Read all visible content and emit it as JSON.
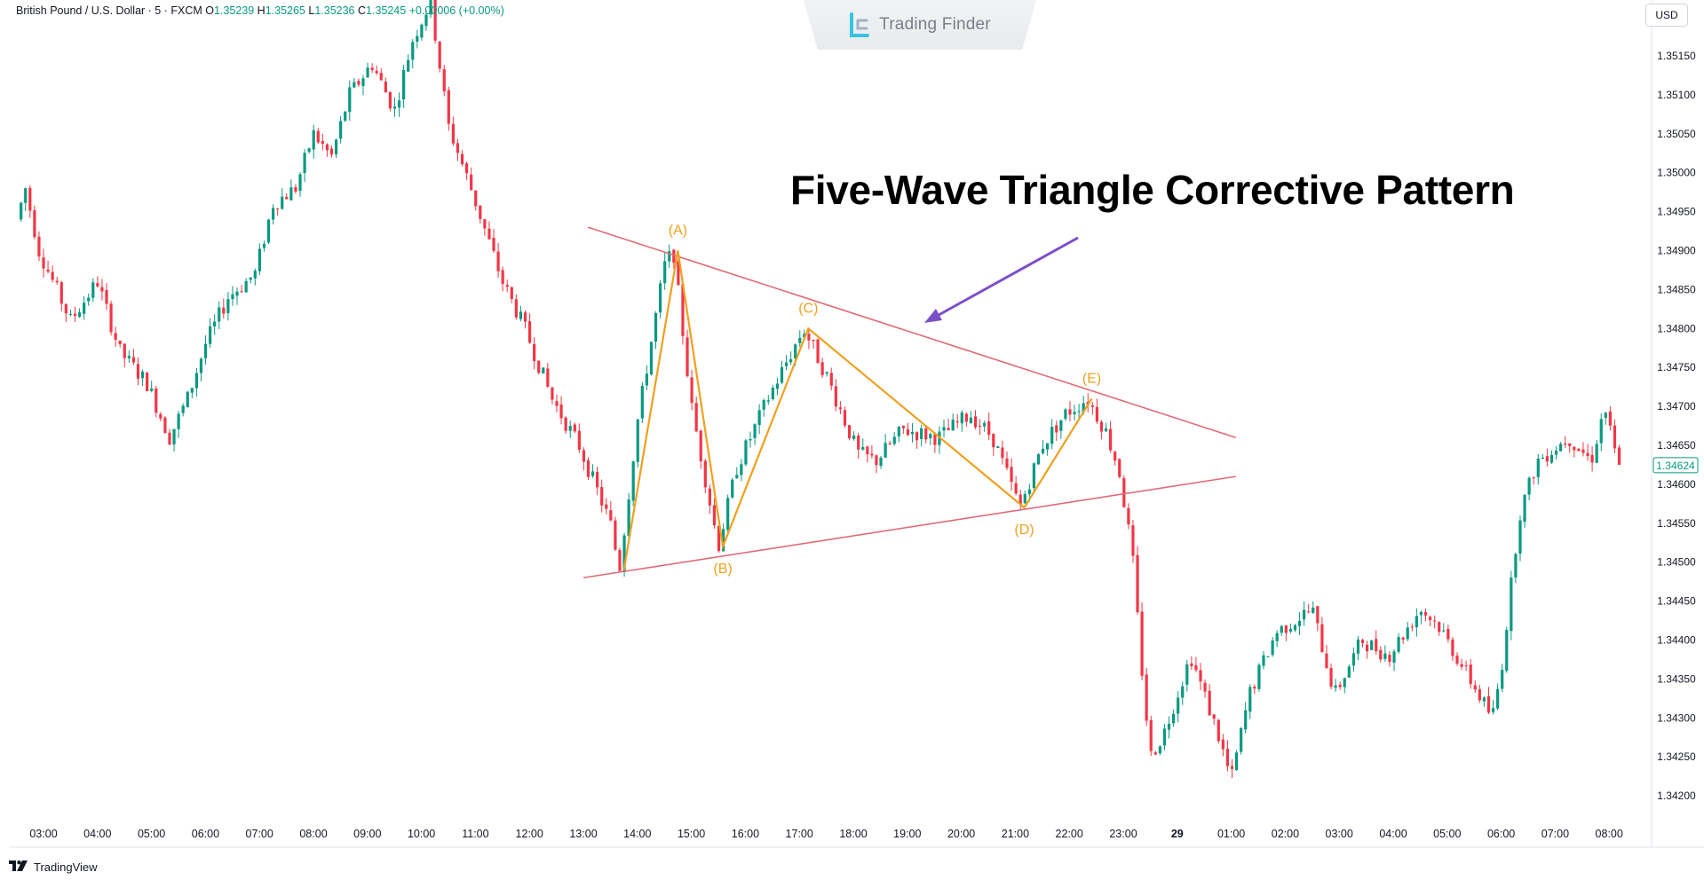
{
  "legend": {
    "symbol": "British Pound / U.S. Dollar · 5 · FXCM",
    "o_label": "O",
    "o_value": "1.35239",
    "h_label": "H",
    "h_value": "1.35265",
    "l_label": "L",
    "l_value": "1.35236",
    "c_label": "C",
    "c_value": "1.35245",
    "change": "+0.00006 (+0.00%)"
  },
  "watermark": {
    "text": "Trading Finder"
  },
  "annotation": {
    "title": "Five-Wave Triangle Corrective Pattern"
  },
  "currency_button": "USD",
  "footer": {
    "brand": "TradingView"
  },
  "colors": {
    "up": "#089981",
    "down": "#f23645",
    "wave": "#f0a01e",
    "trendline": "#e06b78",
    "arrow": "#7b4fc9",
    "price_badge": "#089981"
  },
  "chart_data": {
    "type": "candlestick",
    "timeframe": "5",
    "x_tick_labels": [
      "03:00",
      "04:00",
      "05:00",
      "06:00",
      "07:00",
      "08:00",
      "09:00",
      "10:00",
      "11:00",
      "12:00",
      "13:00",
      "14:00",
      "15:00",
      "16:00",
      "17:00",
      "18:00",
      "19:00",
      "20:00",
      "21:00",
      "22:00",
      "23:00",
      "29",
      "01:00",
      "02:00",
      "03:00",
      "04:00",
      "05:00",
      "06:00",
      "07:00",
      "08:00"
    ],
    "y_tick_labels": [
      "1.35150",
      "1.35100",
      "1.35050",
      "1.35000",
      "1.34950",
      "1.34900",
      "1.34850",
      "1.34800",
      "1.34750",
      "1.34700",
      "1.34650",
      "1.34600",
      "1.34550",
      "1.34500",
      "1.34450",
      "1.34400",
      "1.34350",
      "1.34300",
      "1.34250",
      "1.34200"
    ],
    "ylim": [
      1.3416,
      1.3526
    ],
    "current_price": "1.34624",
    "price_path": [
      [
        "02:35",
        1.3494
      ],
      [
        "02:45",
        1.3498
      ],
      [
        "03:00",
        1.349
      ],
      [
        "03:35",
        1.3481
      ],
      [
        "04:05",
        1.3486
      ],
      [
        "04:30",
        1.3477
      ],
      [
        "05:00",
        1.3473
      ],
      [
        "05:25",
        1.3466
      ],
      [
        "05:45",
        1.3471
      ],
      [
        "06:05",
        1.3478
      ],
      [
        "06:30",
        1.3484
      ],
      [
        "07:00",
        1.3487
      ],
      [
        "07:20",
        1.3496
      ],
      [
        "07:45",
        1.3498
      ],
      [
        "08:05",
        1.3505
      ],
      [
        "08:25",
        1.3502
      ],
      [
        "08:45",
        1.351
      ],
      [
        "09:10",
        1.3514
      ],
      [
        "09:35",
        1.3508
      ],
      [
        "09:55",
        1.3517
      ],
      [
        "10:15",
        1.3522
      ],
      [
        "10:35",
        1.3506
      ],
      [
        "11:00",
        1.3498
      ],
      [
        "11:35",
        1.3486
      ],
      [
        "12:00",
        1.348
      ],
      [
        "12:30",
        1.3471
      ],
      [
        "13:00",
        1.3465
      ],
      [
        "13:35",
        1.3455
      ],
      [
        "13:45",
        1.3449
      ],
      [
        "14:05",
        1.3468
      ],
      [
        "14:35",
        1.3488
      ],
      [
        "14:45",
        1.349
      ],
      [
        "15:05",
        1.347
      ],
      [
        "15:35",
        1.3452
      ],
      [
        "15:55",
        1.3462
      ],
      [
        "16:30",
        1.3471
      ],
      [
        "17:10",
        1.348
      ],
      [
        "17:35",
        1.3474
      ],
      [
        "18:10",
        1.3464
      ],
      [
        "18:30",
        1.3463
      ],
      [
        "19:00",
        1.3467
      ],
      [
        "19:40",
        1.3466
      ],
      [
        "20:15",
        1.3469
      ],
      [
        "20:40",
        1.3466
      ],
      [
        "21:10",
        1.3457
      ],
      [
        "21:35",
        1.3465
      ],
      [
        "22:00",
        1.3469
      ],
      [
        "22:25",
        1.3471
      ],
      [
        "22:45",
        1.3467
      ],
      [
        "23:00",
        1.3462
      ],
      [
        "23:15",
        1.3451
      ],
      [
        "23:25",
        1.3437
      ],
      [
        "23:35",
        1.3425
      ],
      [
        "23:50",
        1.3428
      ],
      [
        "00:20",
        1.3438
      ],
      [
        "00:50",
        1.3428
      ],
      [
        "01:05",
        1.3422
      ],
      [
        "01:25",
        1.3433
      ],
      [
        "01:55",
        1.3441
      ],
      [
        "02:35",
        1.3444
      ],
      [
        "03:00",
        1.3433
      ],
      [
        "03:30",
        1.344
      ],
      [
        "04:00",
        1.3438
      ],
      [
        "04:35",
        1.3444
      ],
      [
        "04:55",
        1.3442
      ],
      [
        "05:25",
        1.3436
      ],
      [
        "05:55",
        1.343
      ],
      [
        "06:05",
        1.3436
      ],
      [
        "06:25",
        1.3456
      ],
      [
        "06:45",
        1.3463
      ],
      [
        "07:20",
        1.3466
      ],
      [
        "07:45",
        1.3463
      ],
      [
        "08:00",
        1.347
      ],
      [
        "08:15",
        1.3462
      ]
    ],
    "wave_points": [
      {
        "label": "",
        "time": "13:45",
        "price": 1.3449
      },
      {
        "label": "(A)",
        "time": "14:45",
        "price": 1.349
      },
      {
        "label": "(B)",
        "time": "15:35",
        "price": 1.3452
      },
      {
        "label": "(C)",
        "time": "17:10",
        "price": 1.348
      },
      {
        "label": "(D)",
        "time": "21:10",
        "price": 1.3457
      },
      {
        "label": "(E)",
        "time": "22:25",
        "price": 1.3471
      }
    ],
    "upper_trendline": [
      [
        "13:05",
        1.3493
      ],
      [
        "25:05",
        1.3466
      ]
    ],
    "lower_trendline": [
      [
        "13:00",
        1.3448
      ],
      [
        "25:05",
        1.3461
      ]
    ]
  }
}
